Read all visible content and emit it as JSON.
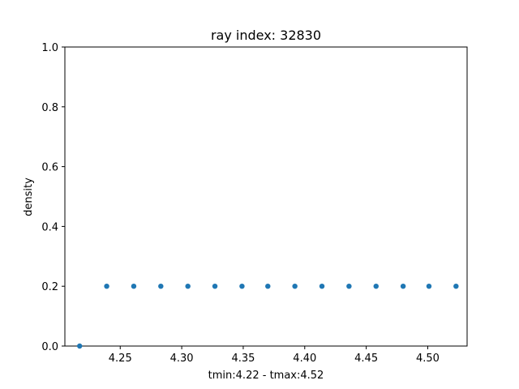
{
  "chart_data": {
    "type": "scatter",
    "title": "ray index: 32830",
    "xlabel": "tmin:4.22 - tmax:4.52",
    "ylabel": "density",
    "xlim": [
      4.205,
      4.532
    ],
    "ylim": [
      0.0,
      1.0
    ],
    "x_ticks": [
      "4.25",
      "4.30",
      "4.35",
      "4.40",
      "4.45",
      "4.50"
    ],
    "y_ticks": [
      "0.0",
      "0.2",
      "0.4",
      "0.6",
      "0.8",
      "1.0"
    ],
    "grid": false,
    "marker_color": "#1f77b4",
    "series": [
      {
        "x": [
          4.217,
          4.239,
          4.261,
          4.283,
          4.305,
          4.327,
          4.349,
          4.37,
          4.392,
          4.414,
          4.436,
          4.458,
          4.48,
          4.501,
          4.523
        ],
        "y": [
          0.0,
          0.2,
          0.2,
          0.2,
          0.2,
          0.2,
          0.2,
          0.2,
          0.2,
          0.2,
          0.2,
          0.2,
          0.2,
          0.2,
          0.2
        ]
      }
    ]
  }
}
